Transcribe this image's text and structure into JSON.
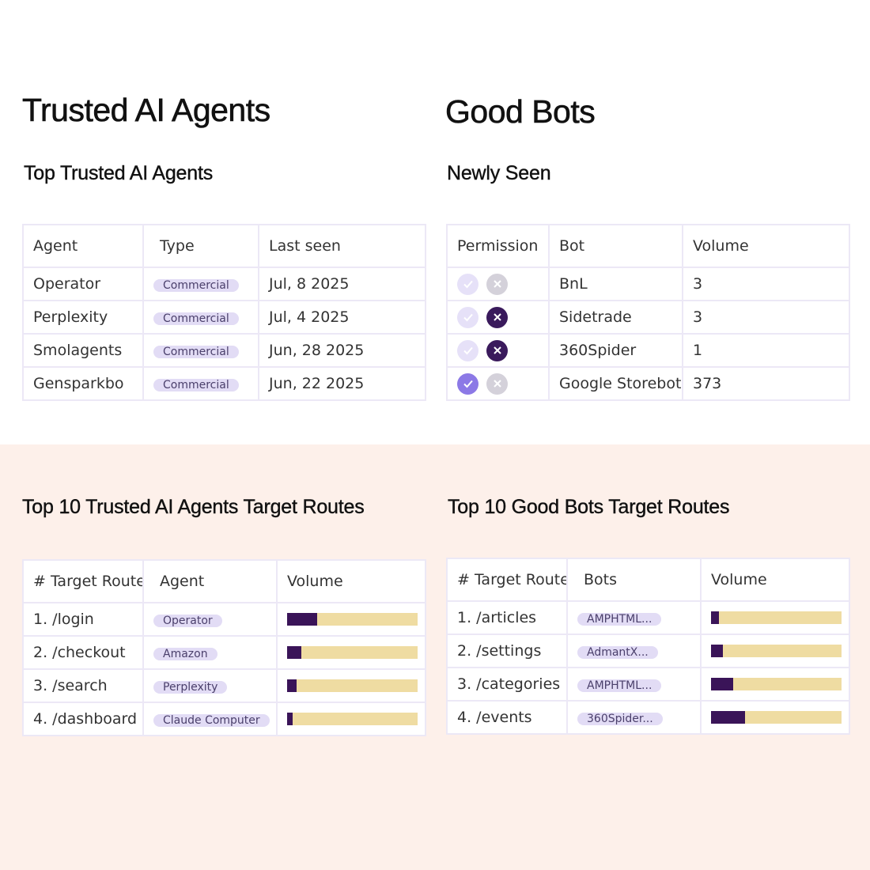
{
  "colors": {
    "accent_dark": "#3a1458",
    "bar_track": "#efdca2",
    "pill_bg": "#e2dcf5",
    "check_active": "#8c79e6",
    "bottom_background": "#fdf0ea"
  },
  "trusted": {
    "title": "Trusted AI Agents",
    "subtitle": "Top Trusted AI Agents",
    "columns": [
      "Agent",
      "Type",
      "Last seen"
    ],
    "rows": [
      {
        "agent": "Operator",
        "type": "Commercial",
        "last_seen": "Jul, 8 2025"
      },
      {
        "agent": "Perplexity",
        "type": "Commercial",
        "last_seen": "Jul, 4 2025"
      },
      {
        "agent": "Smolagents",
        "type": "Commercial",
        "last_seen": "Jun, 28 2025"
      },
      {
        "agent": "Gensparkbo",
        "type": "Commercial",
        "last_seen": "Jun, 22 2025"
      }
    ]
  },
  "goodbots": {
    "title": "Good Bots",
    "subtitle": "Newly Seen",
    "columns": [
      "Permission",
      "Bot",
      "Volume"
    ],
    "rows": [
      {
        "allow_active": false,
        "deny_active": false,
        "bot": "BnL",
        "volume": "3"
      },
      {
        "allow_active": false,
        "deny_active": true,
        "bot": "Sidetrade",
        "volume": "3"
      },
      {
        "allow_active": false,
        "deny_active": true,
        "bot": "360Spider",
        "volume": "1"
      },
      {
        "allow_active": true,
        "deny_active": false,
        "bot": "Google Storebot",
        "volume": "373"
      }
    ]
  },
  "agent_routes": {
    "title": "Top 10 Trusted AI Agents Target Routes",
    "columns": [
      "# Target Route",
      "Agent",
      "Volume"
    ],
    "rows": [
      {
        "route": "1. /login",
        "agent": "Operator",
        "volume_fraction": 0.23
      },
      {
        "route": "2. /checkout",
        "agent": "Amazon",
        "volume_fraction": 0.11
      },
      {
        "route": "3. /search",
        "agent": "Perplexity",
        "volume_fraction": 0.07
      },
      {
        "route": "4. /dashboard",
        "agent": "Claude Computer",
        "volume_fraction": 0.04
      }
    ]
  },
  "bot_routes": {
    "title": "Top 10 Good Bots Target Routes",
    "columns": [
      "# Target Route",
      "Bots",
      "Volume"
    ],
    "rows": [
      {
        "route": "1. /articles",
        "bot": "AMPHTML...",
        "volume_fraction": 0.06
      },
      {
        "route": "2. /settings",
        "bot": "AdmantX...",
        "volume_fraction": 0.09
      },
      {
        "route": "3. /categories",
        "bot": "AMPHTML...",
        "volume_fraction": 0.17
      },
      {
        "route": "4. /events",
        "bot": "360Spider...",
        "volume_fraction": 0.26
      }
    ]
  }
}
